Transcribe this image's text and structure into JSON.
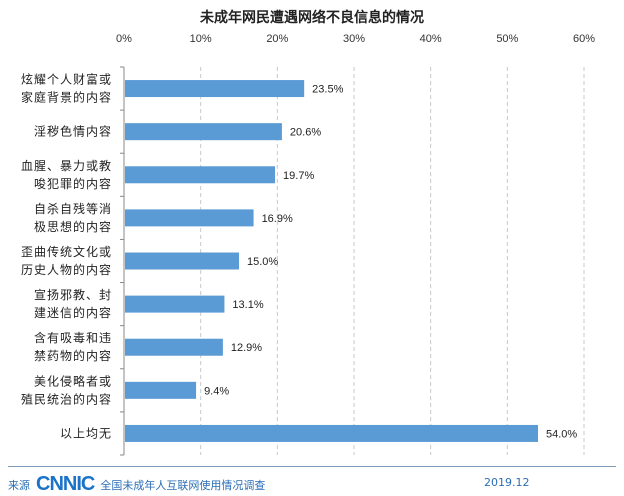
{
  "chart_data": {
    "type": "bar",
    "orientation": "horizontal",
    "title": "未成年网民遭遇网络不良信息的情况",
    "categories": [
      [
        "炫耀个人财富或",
        "家庭背景的内容"
      ],
      [
        "淫秽色情内容"
      ],
      [
        "血腥、暴力或教",
        "唆犯罪的内容"
      ],
      [
        "自杀自残等消",
        "极思想的内容"
      ],
      [
        "歪曲传统文化或",
        "历史人物的内容"
      ],
      [
        "宣扬邪教、封",
        "建迷信的内容"
      ],
      [
        "含有吸毒和违",
        "禁药物的内容"
      ],
      [
        "美化侵略者或",
        "殖民统治的内容"
      ],
      [
        "以上均无"
      ]
    ],
    "values": [
      23.5,
      20.6,
      19.7,
      16.9,
      15.0,
      13.1,
      12.9,
      9.4,
      54.0
    ],
    "data_labels": [
      "23.5%",
      "20.6%",
      "19.7%",
      "16.9%",
      "15.0%",
      "13.1%",
      "12.9%",
      "9.4%",
      "54.0%"
    ],
    "x_ticks": [
      "0%",
      "10%",
      "20%",
      "30%",
      "40%",
      "50%",
      "60%"
    ],
    "xlim": [
      0,
      60
    ],
    "x_axis_position": "top",
    "grid": "vertical dashed",
    "bar_color": "#5b9bd5",
    "xlabel": "",
    "ylabel": ""
  },
  "footer": {
    "source_label": "来源",
    "logo_text": "CNNIC",
    "source_name": "全国未成年人互联网使用情况调查",
    "date": "2019.12"
  }
}
